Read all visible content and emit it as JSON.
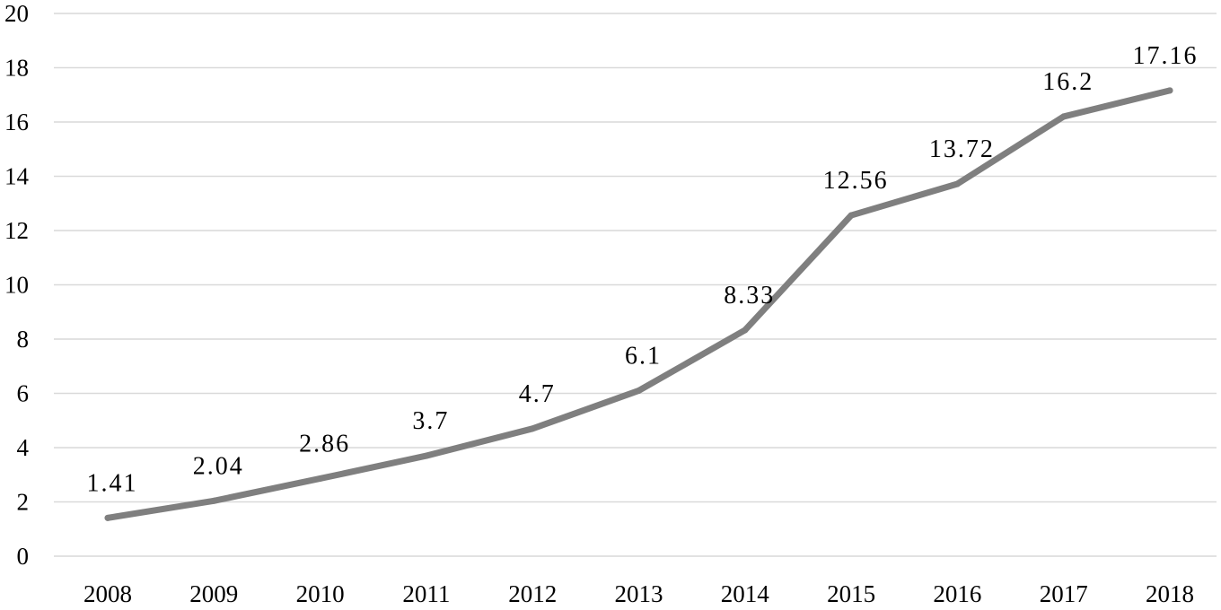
{
  "chart_data": {
    "type": "line",
    "title": "",
    "xlabel": "",
    "ylabel": "",
    "categories": [
      "2008",
      "2009",
      "2010",
      "2011",
      "2012",
      "2013",
      "2014",
      "2015",
      "2016",
      "2017",
      "2018"
    ],
    "series": [
      {
        "values": [
          1.41,
          2.04,
          2.86,
          3.7,
          4.7,
          6.1,
          8.33,
          12.56,
          13.72,
          16.2,
          17.16
        ],
        "data_labels": [
          "1.41",
          "2.04",
          "2.86",
          "3.7",
          "4.7",
          "6.1",
          "8.33",
          "12.56",
          "13.72",
          "16.2",
          "17.16"
        ],
        "color": "#7f7f7f"
      }
    ],
    "ylim": [
      0,
      20
    ],
    "yticks": [
      0,
      2,
      4,
      6,
      8,
      10,
      12,
      14,
      16,
      18,
      20
    ],
    "grid": true,
    "legend": "none"
  }
}
